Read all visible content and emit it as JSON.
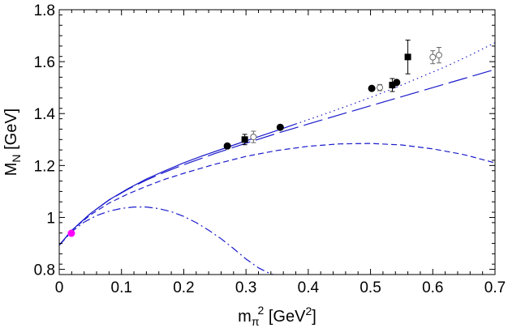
{
  "chart_data": {
    "type": "line",
    "title": "",
    "xlabel": "m_π^2 [GeV^2]",
    "ylabel": "M_N [GeV]",
    "xlabel_parts": {
      "base": "m",
      "sub": "π",
      "sup": "2",
      "rest_open": " [GeV",
      "rest_sup": "2",
      "rest_close": "]"
    },
    "ylabel_parts": {
      "base": "M",
      "sub": "N",
      "rest": " [GeV]"
    },
    "xlim": [
      0,
      0.7
    ],
    "ylim": [
      0.78,
      1.8
    ],
    "x_ticks": [
      0,
      0.1,
      0.2,
      0.3,
      0.4,
      0.5,
      0.6,
      0.7
    ],
    "x_tick_labels": [
      "0",
      "0.1",
      "0.2",
      "0.3",
      "0.4",
      "0.5",
      "0.6",
      "0.7"
    ],
    "y_ticks": [
      0.8,
      1.0,
      1.2,
      1.4,
      1.6,
      1.8
    ],
    "y_tick_labels": [
      "0.8",
      "1",
      "1.2",
      "1.4",
      "1.6",
      "1.8"
    ],
    "grid": false,
    "legend": "none",
    "series": [
      {
        "name": "solid",
        "style": "solid",
        "color": "#1a1acc",
        "x": [
          0,
          0.02,
          0.05,
          0.08,
          0.11,
          0.14,
          0.17,
          0.2,
          0.23,
          0.26,
          0.29,
          0.32,
          0.35,
          0.38
        ],
        "y": [
          0.893,
          0.95,
          1.015,
          1.068,
          1.11,
          1.148,
          1.18,
          1.21,
          1.237,
          1.262,
          1.287,
          1.311,
          1.335,
          1.36
        ]
      },
      {
        "name": "dotted",
        "style": "dotted",
        "color": "#1a1acc",
        "x": [
          0.38,
          0.42,
          0.46,
          0.5,
          0.54,
          0.58,
          0.62,
          0.66,
          0.7
        ],
        "y": [
          1.36,
          1.393,
          1.427,
          1.462,
          1.5,
          1.54,
          1.58,
          1.625,
          1.673
        ]
      },
      {
        "name": "long-dash",
        "style": "long-dash",
        "color": "#1a1acc",
        "x": [
          0,
          0.02,
          0.05,
          0.08,
          0.11,
          0.14,
          0.17,
          0.2,
          0.25,
          0.3,
          0.35,
          0.4,
          0.45,
          0.5,
          0.55,
          0.6,
          0.65,
          0.7
        ],
        "y": [
          0.893,
          0.95,
          1.015,
          1.067,
          1.108,
          1.144,
          1.175,
          1.203,
          1.246,
          1.286,
          1.324,
          1.36,
          1.395,
          1.43,
          1.465,
          1.5,
          1.535,
          1.57
        ]
      },
      {
        "name": "short-dash",
        "style": "short-dash",
        "color": "#1a1acc",
        "x": [
          0,
          0.02,
          0.05,
          0.08,
          0.11,
          0.14,
          0.17,
          0.2,
          0.25,
          0.3,
          0.35,
          0.4,
          0.45,
          0.5,
          0.55,
          0.6,
          0.65,
          0.7
        ],
        "y": [
          0.893,
          0.95,
          1.01,
          1.055,
          1.09,
          1.12,
          1.147,
          1.17,
          1.205,
          1.235,
          1.258,
          1.274,
          1.283,
          1.285,
          1.279,
          1.264,
          1.242,
          1.21
        ]
      },
      {
        "name": "dash-dot",
        "style": "dash-dot",
        "color": "#1a1acc",
        "x": [
          0,
          0.02,
          0.04,
          0.06,
          0.08,
          0.1,
          0.12,
          0.14,
          0.16,
          0.18,
          0.2,
          0.22,
          0.24,
          0.26,
          0.28,
          0.3,
          0.32,
          0.34,
          0.355
        ],
        "y": [
          0.893,
          0.945,
          0.982,
          1.007,
          1.024,
          1.035,
          1.04,
          1.04,
          1.034,
          1.022,
          1.004,
          0.98,
          0.951,
          0.918,
          0.88,
          0.84,
          0.806,
          0.782,
          0.775
        ]
      }
    ],
    "markers": [
      {
        "group": "physical-point",
        "shape": "circle-filled",
        "color": "#ff00ff",
        "points": [
          {
            "x": 0.0195,
            "y": 0.939,
            "err": 0
          }
        ]
      },
      {
        "group": "filled-circles",
        "shape": "circle-filled",
        "color": "#000000",
        "points": [
          {
            "x": 0.27,
            "y": 1.275,
            "err": 0
          },
          {
            "x": 0.355,
            "y": 1.347,
            "err": 0
          },
          {
            "x": 0.502,
            "y": 1.497,
            "err": 0
          },
          {
            "x": 0.542,
            "y": 1.52,
            "err": 0
          }
        ]
      },
      {
        "group": "filled-squares",
        "shape": "square-filled",
        "color": "#000000",
        "points": [
          {
            "x": 0.298,
            "y": 1.3,
            "err": 0.02
          },
          {
            "x": 0.535,
            "y": 1.51,
            "err": 0.025
          },
          {
            "x": 0.56,
            "y": 1.618,
            "err": 0.065
          }
        ]
      },
      {
        "group": "open-circles",
        "shape": "circle-open",
        "color": "#666666",
        "points": [
          {
            "x": 0.312,
            "y": 1.31,
            "err": 0.022
          },
          {
            "x": 0.515,
            "y": 1.5,
            "err": 0.012
          },
          {
            "x": 0.6,
            "y": 1.617,
            "err": 0.025
          },
          {
            "x": 0.61,
            "y": 1.625,
            "err": 0.03
          }
        ]
      }
    ]
  }
}
